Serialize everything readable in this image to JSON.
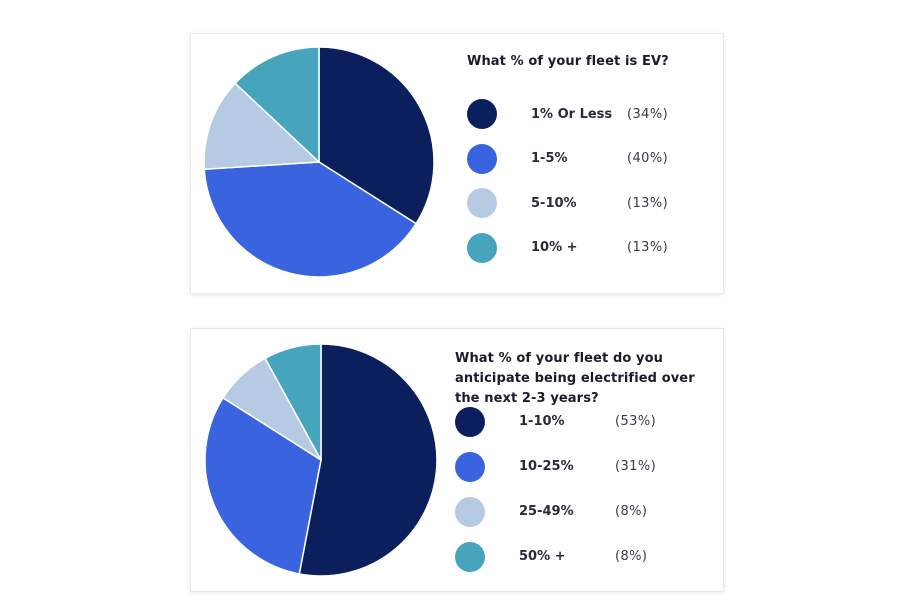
{
  "chart_data": [
    {
      "type": "pie",
      "title": "What % of your fleet is EV?",
      "categories": [
        "1% Or Less",
        "1-5%",
        "5-10%",
        "10% +"
      ],
      "values": [
        34,
        40,
        13,
        13
      ],
      "value_labels": [
        "(34%)",
        "(40%)",
        "(13%)",
        "(13%)"
      ],
      "colors": [
        "#0b1f5c",
        "#3a63e0",
        "#b6cbe3",
        "#46a4bd"
      ],
      "legend_position": "right"
    },
    {
      "type": "pie",
      "title": "What % of your fleet do you anticipate being electrified over the next 2-3 years?",
      "categories": [
        "1-10%",
        "10-25%",
        "25-49%",
        "50% +"
      ],
      "values": [
        53,
        31,
        8,
        8
      ],
      "value_labels": [
        "(53%)",
        "(31%)",
        "(8%)",
        "(8%)"
      ],
      "colors": [
        "#0b1f5c",
        "#3a63e0",
        "#b6cbe3",
        "#46a4bd"
      ],
      "legend_position": "right"
    }
  ]
}
